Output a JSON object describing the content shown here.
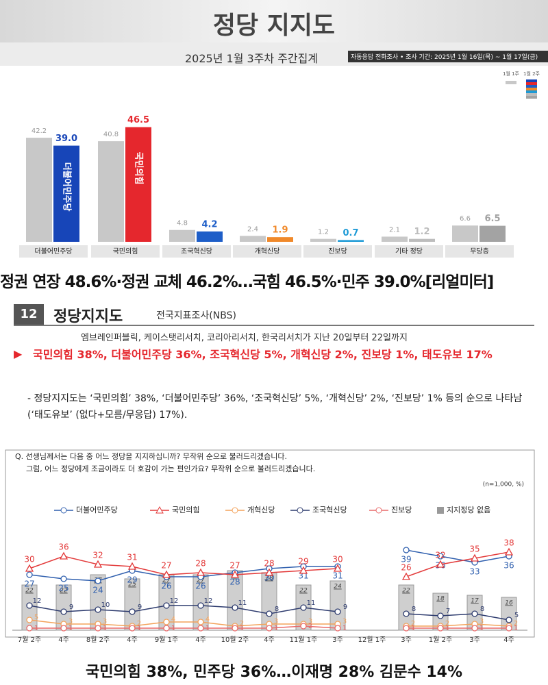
{
  "top": {
    "title": "정당 지지도",
    "subtitle": "2025년 1월 3주차 주간집계",
    "method": "자동응답 전화조사 • 조사 기간: 2025년 1월 16일(목) ~ 1월 17일(금)"
  },
  "caption1": "정권 연장 48.6%·정권 교체 46.2%…국힘 46.5%·민주 39.0%[리얼미터]",
  "report": {
    "number": "12",
    "heading": "정당지지도",
    "source": "전국지표조사(NBS)",
    "agencies": "엠브레인퍼블릭, 케이스탯리서치, 코리아리서치, 한국리서치가 지난 20일부터 22일까지",
    "highlight": "국민의힘 38%, 더불어민주당 36%, 조국혁신당 5%, 개혁신당 2%, 진보당 1%, 태도유보 17%",
    "bullet": "- 정당지지도는 ‘국민의힘’ 38%, ‘더불어민주당’ 36%, ‘조국혁신당’ 5%, ‘개혁신당’ 2%, ‘진보당’ 1% 등의 순으로 나타남 (‘태도유보’ (없다+모름/무응답) 17%).",
    "question": "Q. 선생님께서는 다음 중 어느 정당을 지지하십니까? 무작위 순으로 불러드리겠습니다.",
    "question2": "그럼, 어느 정당에게 조금이라도 더 호감이 가는 편인가요? 무작위 순으로 불러드리겠습니다.",
    "note": "(n=1,000, %)"
  },
  "caption2": "국민의힘 38%, 민주당 36%…이재명 28% 김문수 14%",
  "chart_data": [
    {
      "type": "bar",
      "categories": [
        "더불어민주당",
        "국민의힘",
        "조국혁신당",
        "개혁신당",
        "진보당",
        "기타 정당",
        "무당층"
      ],
      "series": [
        {
          "name": "1월 1주",
          "color": "#c8c8c8",
          "values": [
            42.2,
            40.8,
            4.8,
            2.4,
            1.2,
            2.1,
            6.6
          ]
        },
        {
          "name": "1월 2주",
          "colors": [
            "#1745b8",
            "#e5272d",
            "#1e5ec8",
            "#f0892a",
            "#1d9ad6",
            "#bdbdbd",
            "#a3a3a3"
          ],
          "values": [
            39.0,
            46.5,
            4.2,
            1.9,
            0.7,
            1.2,
            6.5
          ],
          "value_labels": [
            "39.0",
            "46.5",
            "4.2",
            "1.9",
            "0.7",
            "1.2",
            "6.5"
          ]
        }
      ]
    },
    {
      "type": "line",
      "categories": [
        "7월 2주",
        "4주",
        "8월 2주",
        "4주",
        "9월 1주",
        "4주",
        "10월 2주",
        "4주",
        "11월 1주",
        "3주",
        "12월 1주",
        "3주",
        "1월 2주",
        "3주",
        "4주"
      ],
      "series": [
        {
          "name": "더불어민주당",
          "color": "#2f5fae",
          "marker": "circle",
          "values": [
            27,
            25,
            24,
            29,
            26,
            26,
            28,
            30,
            31,
            31,
            null,
            39,
            36,
            33,
            36
          ]
        },
        {
          "name": "국민의힘",
          "color": "#e33a3a",
          "marker": "triangle",
          "values": [
            30,
            36,
            32,
            31,
            27,
            28,
            27,
            28,
            29,
            30,
            null,
            26,
            32,
            35,
            38
          ]
        },
        {
          "name": "개혁신당",
          "color": "#f3a25a",
          "marker": "circle",
          "values": [
            5,
            3,
            3,
            2,
            4,
            4,
            2,
            3,
            3,
            3,
            null,
            2,
            2,
            3,
            2
          ]
        },
        {
          "name": "조국혁신당",
          "color": "#2d3b6e",
          "marker": "circle",
          "values": [
            12,
            9,
            10,
            9,
            12,
            12,
            11,
            8,
            11,
            9,
            null,
            8,
            7,
            8,
            5
          ]
        },
        {
          "name": "진보당",
          "color": "#e86a6a",
          "marker": "circle",
          "values": [
            1,
            1,
            1,
            1,
            1,
            1,
            1,
            1,
            2,
            1,
            null,
            1,
            1,
            1,
            1
          ]
        },
        {
          "name": "지지정당 없음",
          "color": "#cfcfcf",
          "type": "bar",
          "values": [
            22,
            22,
            27,
            25,
            27,
            27,
            29,
            28,
            22,
            24,
            null,
            22,
            18,
            17,
            16
          ]
        }
      ]
    }
  ]
}
